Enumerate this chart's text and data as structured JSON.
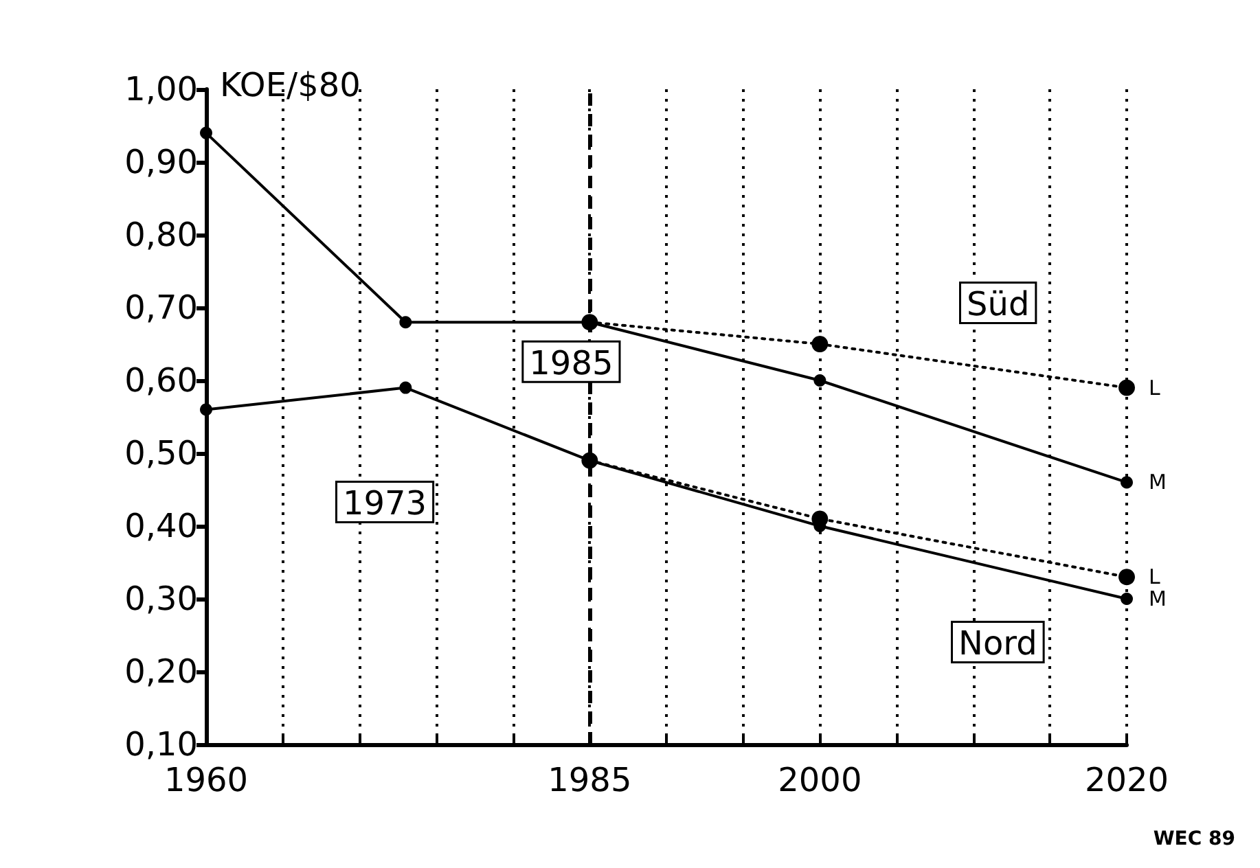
{
  "chart_data": {
    "type": "line",
    "ylabel": "KOE/$80",
    "series": [
      {
        "name": "M",
        "color": "#000000",
        "x": [
          1960,
          1973,
          1985,
          2000,
          2020
        ],
        "values": [
          0.94,
          0.68,
          0.68,
          0.6,
          0.46
        ],
        "line_style": "solid"
      },
      {
        "name": "L",
        "color": "#000000",
        "x": [
          1985,
          2000,
          2020
        ],
        "values": [
          0.68,
          0.65,
          0.59
        ],
        "line_style": "dotted"
      },
      {
        "name": "M",
        "color": "#000000",
        "x": [
          1960,
          1973,
          1985,
          2000,
          2020
        ],
        "values": [
          0.56,
          0.59,
          0.49,
          0.4,
          0.3
        ],
        "line_style": "solid"
      },
      {
        "name": "L",
        "color": "#000000",
        "x": [
          1985,
          2000,
          2020
        ],
        "values": [
          0.49,
          0.41,
          0.33
        ],
        "line_style": "dotted"
      }
    ],
    "xlim": [
      1960,
      2020
    ],
    "xticks": [
      1960,
      {
        "value": 1965,
        "label": null
      },
      {
        "value": 1970,
        "label": null
      },
      {
        "value": 1975,
        "label": null
      },
      {
        "value": 1980,
        "label": null
      },
      1985,
      {
        "value": 1990,
        "label": null
      },
      {
        "value": 1995,
        "label": null
      },
      2000,
      {
        "value": 2005,
        "label": null
      },
      {
        "value": 2010,
        "label": null
      },
      {
        "value": 2015,
        "label": null
      },
      2020
    ],
    "ylim": [
      0.1,
      1.0
    ],
    "yticks": [
      {
        "value": 0.1,
        "label": "0,10"
      },
      {
        "value": 0.2,
        "label": "0,20"
      },
      {
        "value": 0.3,
        "label": "0,30"
      },
      {
        "value": 0.4,
        "label": "0,40"
      },
      {
        "value": 0.5,
        "label": "0,50"
      },
      {
        "value": 0.6,
        "label": "0,60"
      },
      {
        "value": 0.7,
        "label": "0,70"
      },
      {
        "value": 0.8,
        "label": "0,80"
      },
      {
        "value": 0.9,
        "label": "0,90"
      },
      {
        "value": 1.0,
        "label": "1,00"
      }
    ],
    "grid": "x",
    "marker": "circle",
    "legend": false,
    "ref_lines": [
      {
        "axis": "x",
        "value": 1985,
        "label": "1985",
        "line_style": "dashed"
      }
    ],
    "annotations": [
      "Süd",
      "Nord",
      "1973",
      "WEC 89"
    ]
  }
}
